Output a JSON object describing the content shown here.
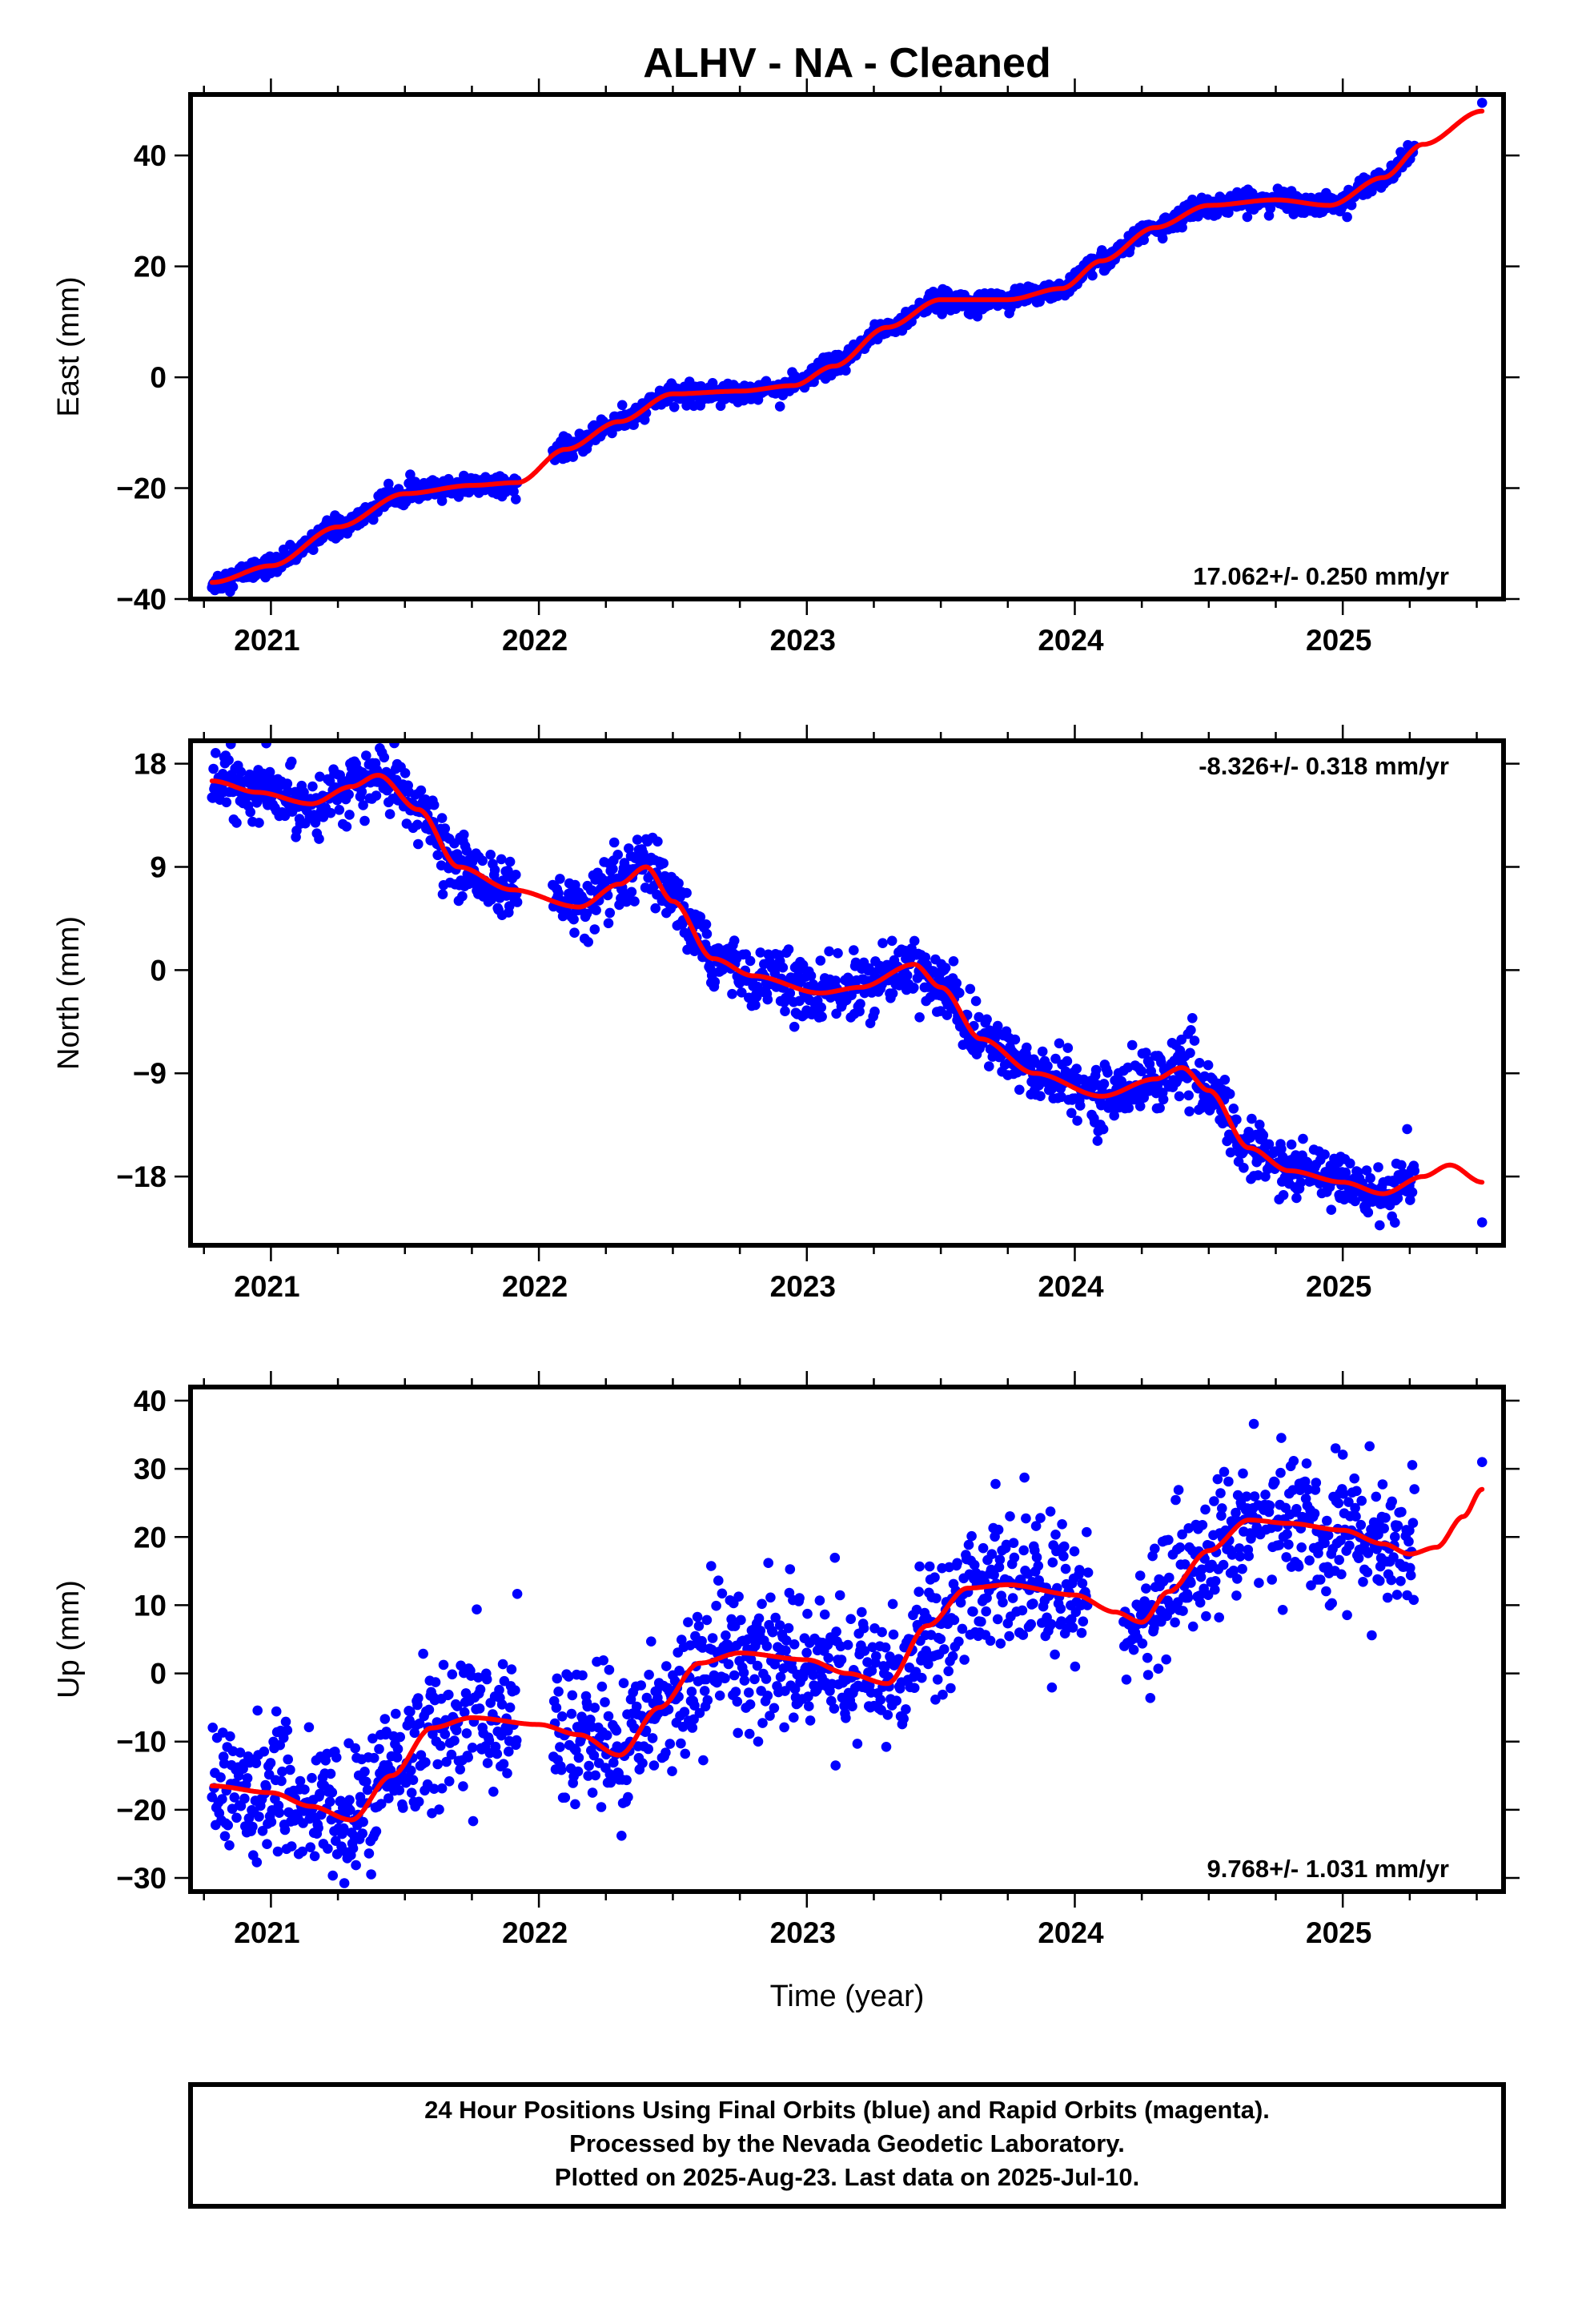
{
  "title": "ALHV  - NA - Cleaned",
  "colors": {
    "observations": "#0000ff",
    "fit": "#ff0000",
    "frame": "#000000"
  },
  "chart_data": [
    {
      "type": "scatter",
      "ylabel": "East (mm)",
      "xlabel": "",
      "xlim": [
        2020.7,
        2025.6
      ],
      "ylim": [
        -40,
        51
      ],
      "xticks": [
        2021,
        2022,
        2023,
        2024,
        2025
      ],
      "xtick_labels": [
        "2021",
        "2022",
        "2023",
        "2024",
        "2025"
      ],
      "yticks": [
        -40,
        -20,
        0,
        20,
        40
      ],
      "ytick_labels": [
        "−40",
        "−20",
        "0",
        "20",
        "40"
      ],
      "rate_label": "17.062+/- 0.250 mm/yr",
      "rate_position": "bottom-right",
      "series": [
        {
          "kind": "observations",
          "noise": 0.9,
          "gaps": [
            [
              2021.92,
              2022.05
            ]
          ],
          "last_point": [
            2025.52,
            49.5
          ]
        },
        {
          "kind": "fit",
          "x": [
            2020.78,
            2021.0,
            2021.25,
            2021.5,
            2021.75,
            2021.92,
            2022.1,
            2022.3,
            2022.5,
            2022.75,
            2022.95,
            2023.1,
            2023.3,
            2023.5,
            2023.75,
            2023.95,
            2024.1,
            2024.3,
            2024.5,
            2024.75,
            2024.95,
            2025.15,
            2025.3,
            2025.52
          ],
          "y": [
            -37,
            -34,
            -27,
            -21,
            -19.5,
            -19,
            -13,
            -8,
            -3,
            -2.5,
            -1.5,
            2,
            9,
            14,
            14,
            16,
            21,
            27,
            31,
            32,
            31,
            36,
            42,
            48
          ]
        }
      ]
    },
    {
      "type": "scatter",
      "ylabel": "North (mm)",
      "xlabel": "",
      "xlim": [
        2020.7,
        2025.6
      ],
      "ylim": [
        -24,
        20
      ],
      "xticks": [
        2021,
        2022,
        2023,
        2024,
        2025
      ],
      "xtick_labels": [
        "2021",
        "2022",
        "2023",
        "2024",
        "2025"
      ],
      "yticks": [
        -18,
        -9,
        0,
        9,
        18
      ],
      "ytick_labels": [
        "−18",
        "−9",
        "0",
        "9",
        "18"
      ],
      "rate_label": "-8.326+/- 0.318 mm/yr",
      "rate_position": "top-right",
      "series": [
        {
          "kind": "observations",
          "noise": 1.3,
          "gaps": [
            [
              2021.92,
              2022.05
            ]
          ],
          "last_point": [
            2025.52,
            -22
          ]
        },
        {
          "kind": "fit",
          "x": [
            2020.78,
            2020.95,
            2021.15,
            2021.3,
            2021.4,
            2021.55,
            2021.7,
            2021.9,
            2022.15,
            2022.3,
            2022.4,
            2022.5,
            2022.65,
            2022.8,
            2023.05,
            2023.2,
            2023.4,
            2023.5,
            2023.65,
            2023.85,
            2024.1,
            2024.3,
            2024.4,
            2024.5,
            2024.65,
            2024.8,
            2025.0,
            2025.15,
            2025.3,
            2025.4,
            2025.52
          ],
          "y": [
            16.5,
            15.5,
            14.5,
            16,
            17,
            14,
            9,
            7,
            5.5,
            7.5,
            9,
            6,
            1,
            -0.5,
            -2,
            -1.5,
            0.5,
            -1.5,
            -6,
            -9,
            -11,
            -9.5,
            -8.5,
            -10.5,
            -15.5,
            -17.5,
            -18.5,
            -19.5,
            -18,
            -17,
            -18.5
          ]
        }
      ]
    },
    {
      "type": "scatter",
      "ylabel": "Up (mm)",
      "xlabel": "Time (year)",
      "xlim": [
        2020.7,
        2025.6
      ],
      "ylim": [
        -32,
        42
      ],
      "xticks": [
        2021,
        2022,
        2023,
        2024,
        2025
      ],
      "xtick_labels": [
        "2021",
        "2022",
        "2023",
        "2024",
        "2025"
      ],
      "yticks": [
        -30,
        -20,
        -10,
        0,
        10,
        20,
        30,
        40
      ],
      "ytick_labels": [
        "−30",
        "−20",
        "−10",
        "0",
        "10",
        "20",
        "30",
        "40"
      ],
      "rate_label": "9.768+/- 1.031 mm/yr",
      "rate_position": "bottom-right",
      "series": [
        {
          "kind": "observations",
          "noise": 5,
          "gaps": [
            [
              2021.92,
              2022.05
            ],
            [
              2024.05,
              2024.18
            ]
          ],
          "last_point": [
            2025.52,
            31
          ]
        },
        {
          "kind": "fit",
          "x": [
            2020.78,
            2021.0,
            2021.15,
            2021.3,
            2021.45,
            2021.6,
            2021.75,
            2022.0,
            2022.15,
            2022.3,
            2022.45,
            2022.6,
            2022.75,
            2023.0,
            2023.15,
            2023.3,
            2023.45,
            2023.6,
            2023.75,
            2024.0,
            2024.15,
            2024.25,
            2024.35,
            2024.5,
            2024.65,
            2024.8,
            2025.0,
            2025.15,
            2025.25,
            2025.35,
            2025.45,
            2025.52
          ],
          "y": [
            -16.5,
            -17.5,
            -19.5,
            -21.5,
            -15,
            -8,
            -6.5,
            -7.5,
            -9,
            -12,
            -5,
            1.5,
            3,
            2,
            0,
            -1.5,
            7,
            12.5,
            13,
            11.5,
            9,
            7.5,
            12,
            18,
            22.5,
            22,
            21,
            19,
            17.5,
            18.5,
            23,
            27
          ]
        }
      ]
    }
  ],
  "footer": {
    "line1": "24 Hour Positions Using Final Orbits (blue) and Rapid Orbits (magenta).",
    "line2": "Processed by the Nevada Geodetic Laboratory.",
    "line3": "Plotted on 2025-Aug-23. Last data on 2025-Jul-10."
  }
}
